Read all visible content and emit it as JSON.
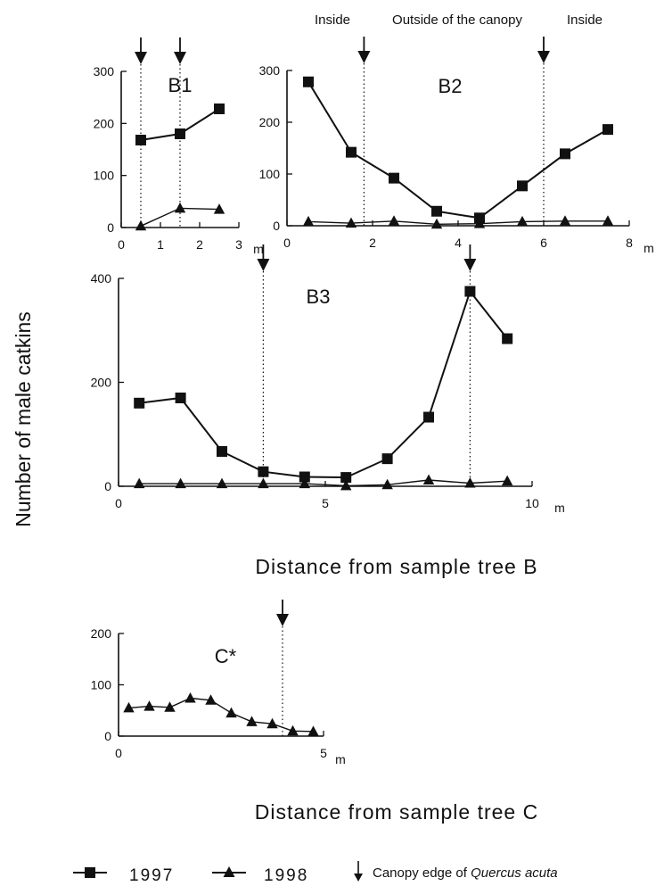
{
  "colors": {
    "ink": "#111111",
    "background": "#ffffff"
  },
  "y_label": "Number of male catkins",
  "x_label_b": "Distance from sample tree B",
  "x_label_c": "Distance from sample tree C",
  "canopy_labels": {
    "left": "Inside",
    "middle": "Outside of the canopy",
    "right": "Inside"
  },
  "legend": {
    "s1997": "1997",
    "s1998": "1998",
    "arrow_text": "Canopy edge of ",
    "species": "Quercus acuta"
  },
  "chart_data": [
    {
      "type": "line",
      "title": "B1",
      "unit": "m",
      "xlim": [
        0,
        3
      ],
      "xticks": [
        0,
        1,
        2,
        3
      ],
      "ylim": [
        0,
        300
      ],
      "yticks": [
        0,
        100,
        200,
        300
      ],
      "canopy_edges": [
        0.5,
        1.5
      ],
      "series": [
        {
          "name": "1997",
          "marker": "square",
          "x": [
            0.5,
            1.5,
            2.5
          ],
          "y": [
            168,
            180,
            228
          ]
        },
        {
          "name": "1998",
          "marker": "triangle",
          "x": [
            0.5,
            1.5,
            2.5
          ],
          "y": [
            3,
            37,
            35
          ]
        }
      ]
    },
    {
      "type": "line",
      "title": "B2",
      "unit": "m",
      "xlim": [
        0,
        8
      ],
      "xticks": [
        0,
        2,
        4,
        6,
        8
      ],
      "ylim": [
        0,
        300
      ],
      "yticks": [
        0,
        100,
        200,
        300
      ],
      "canopy_edges": [
        1.8,
        6.0
      ],
      "series": [
        {
          "name": "1997",
          "marker": "square",
          "x": [
            0.5,
            1.5,
            2.5,
            3.5,
            4.5,
            5.5,
            6.5,
            7.5
          ],
          "y": [
            278,
            142,
            92,
            28,
            15,
            77,
            139,
            186
          ]
        },
        {
          "name": "1998",
          "marker": "triangle",
          "x": [
            0.5,
            1.5,
            2.5,
            3.5,
            4.5,
            5.5,
            6.5,
            7.5
          ],
          "y": [
            8,
            5,
            9,
            3,
            4,
            8,
            9,
            9
          ]
        }
      ]
    },
    {
      "type": "line",
      "title": "B3",
      "unit": "m",
      "xlim": [
        0,
        10
      ],
      "xticks": [
        0,
        5,
        10
      ],
      "ylim": [
        0,
        400
      ],
      "yticks": [
        0,
        200,
        400
      ],
      "canopy_edges": [
        3.5,
        8.5
      ],
      "series": [
        {
          "name": "1997",
          "marker": "square",
          "x": [
            0.5,
            1.5,
            2.5,
            3.5,
            4.5,
            5.5,
            6.5,
            7.5,
            8.5,
            9.4
          ],
          "y": [
            160,
            170,
            67,
            28,
            18,
            17,
            53,
            133,
            375,
            284
          ]
        },
        {
          "name": "1998",
          "marker": "triangle",
          "x": [
            0.5,
            1.5,
            2.5,
            3.5,
            4.5,
            5.5,
            6.5,
            7.5,
            8.5,
            9.4
          ],
          "y": [
            5,
            5,
            5,
            5,
            5,
            1,
            3,
            12,
            6,
            10
          ]
        }
      ]
    },
    {
      "type": "line",
      "title": "C*",
      "unit": "m",
      "xlim": [
        0,
        5
      ],
      "xticks": [
        0,
        5
      ],
      "ylim": [
        0,
        200
      ],
      "yticks": [
        0,
        100,
        200
      ],
      "canopy_edges": [
        4.0
      ],
      "series": [
        {
          "name": "1998",
          "marker": "triangle",
          "x": [
            0.25,
            0.75,
            1.25,
            1.75,
            2.25,
            2.75,
            3.25,
            3.75,
            4.25,
            4.75
          ],
          "y": [
            55,
            58,
            56,
            74,
            70,
            45,
            28,
            24,
            10,
            9
          ]
        }
      ]
    }
  ]
}
